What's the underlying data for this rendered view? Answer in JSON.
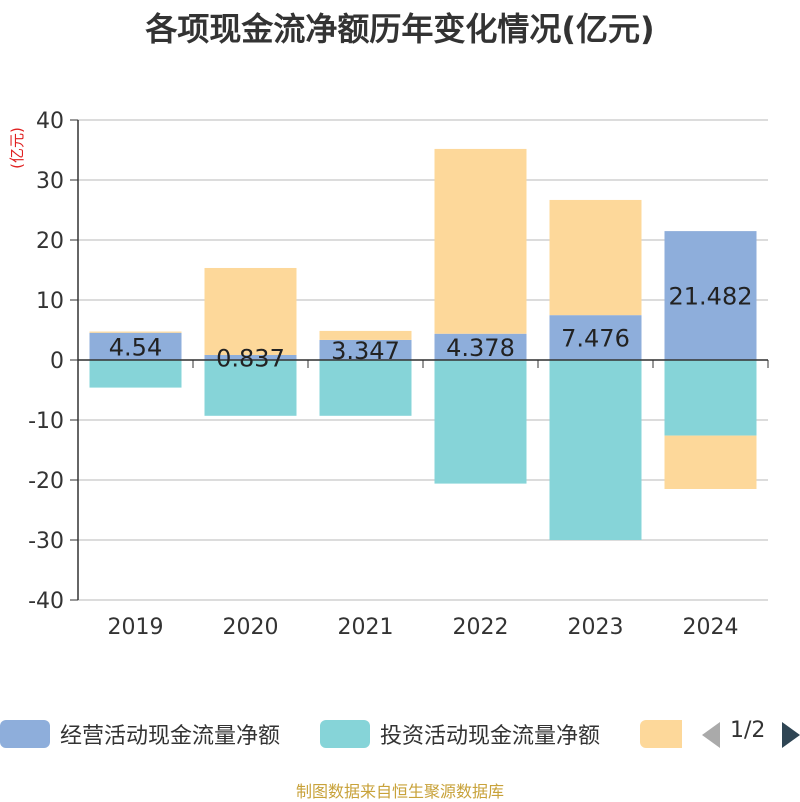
{
  "chart_data": {
    "type": "bar",
    "title": "各项现金流净额历年变化情况(亿元)",
    "ylabel": "(亿元)",
    "xlabel": "",
    "categories": [
      "2019",
      "2020",
      "2021",
      "2022",
      "2023",
      "2024"
    ],
    "ylim": [
      -40,
      40
    ],
    "yticks": [
      40,
      30,
      20,
      10,
      0,
      -10,
      -20,
      -30,
      -40
    ],
    "grid": true,
    "stacked": true,
    "series": [
      {
        "name": "经营活动现金流量净额",
        "color": "#8eaedb",
        "values": [
          4.54,
          0.837,
          3.347,
          4.378,
          7.476,
          21.482
        ],
        "data_labels": [
          "4.54",
          "0.837",
          "3.347",
          "4.378",
          "7.476",
          "21.482"
        ]
      },
      {
        "name": "投资活动现金流量净额",
        "color": "#86d4d8",
        "values": [
          -4.6,
          -9.3,
          -9.3,
          -20.6,
          -30.0,
          -12.6
        ]
      },
      {
        "name": "",
        "color": "#fdd89a",
        "values": [
          0.2,
          14.5,
          1.5,
          30.8,
          19.2,
          -8.9
        ]
      }
    ]
  },
  "legend": {
    "items": [
      {
        "label": "经营活动现金流量净额",
        "color": "#8eaedb"
      },
      {
        "label": "投资活动现金流量净额",
        "color": "#86d4d8"
      },
      {
        "label": "",
        "color": "#fdd89a"
      }
    ],
    "pager": "1/2"
  },
  "source": "制图数据来自恒生聚源数据库"
}
